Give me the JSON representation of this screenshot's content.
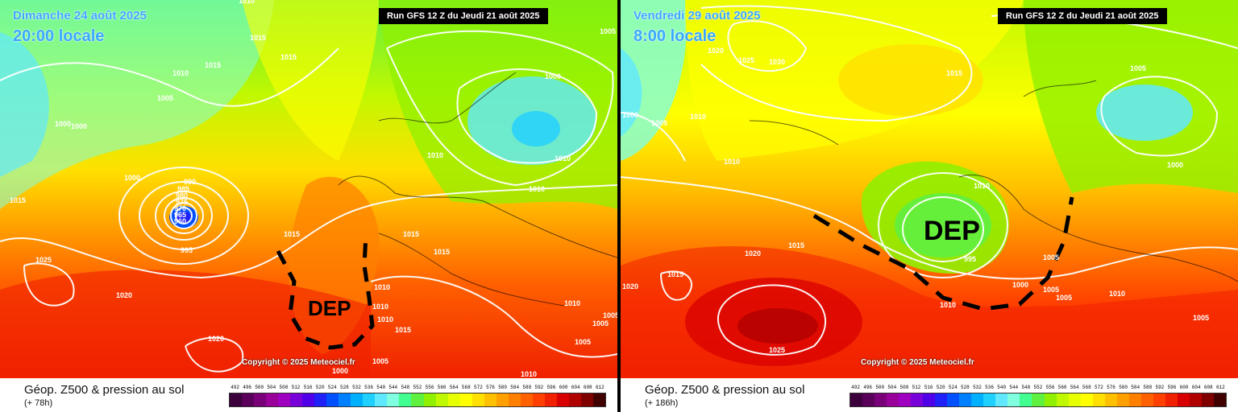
{
  "panels": [
    {
      "date": "Dimanche 24 août 2025",
      "time": "20:00 locale",
      "run": "Run GFS 12 Z du Jeudi 21 août 2025",
      "copyright": "Copyright © 2025 Meteociel.fr",
      "dep_label": "DEP",
      "legend_title": "Géop. Z500 & pression au sol",
      "legend_sub": "(+ 78h)",
      "pressure_labels": [
        "1010",
        "1015",
        "1015",
        "1015",
        "1010",
        "1005",
        "1000",
        "1000",
        "1000",
        "1015",
        "990",
        "985",
        "980",
        "975",
        "970",
        "965",
        "960",
        "995",
        "1015",
        "1025",
        "1020",
        "1020",
        "1010",
        "1010",
        "1010",
        "1015",
        "1015",
        "1015",
        "1010",
        "1005",
        "1000",
        "1010",
        "1005",
        "1005",
        "1000",
        "1010",
        "1005",
        "1010",
        "1005",
        "1010"
      ]
    },
    {
      "date": "Vendredi 29 août 2025",
      "time": "8:00 locale",
      "run": "Run GFS 12 Z du Jeudi 21 août 2025",
      "copyright": "Copyright © 2025 Meteociel.fr",
      "dep_label": "DEP",
      "legend_title": "Géop. Z500 & pression au sol",
      "legend_sub": "(+ 186h)",
      "pressure_labels": [
        "1020",
        "1025",
        "1030",
        "1015",
        "1010",
        "1000",
        "1005",
        "1010",
        "1005",
        "1010",
        "1000",
        "995",
        "1015",
        "1020",
        "1015",
        "1020",
        "1025",
        "1010",
        "1000",
        "1005",
        "1005",
        "1005",
        "1010",
        "1005"
      ]
    }
  ],
  "scale": {
    "labels": [
      "492",
      "496",
      "500",
      "504",
      "508",
      "512",
      "516",
      "520",
      "524",
      "528",
      "532",
      "536",
      "540",
      "544",
      "548",
      "552",
      "556",
      "560",
      "564",
      "568",
      "572",
      "576",
      "580",
      "584",
      "588",
      "592",
      "596",
      "600",
      "604",
      "608",
      "612"
    ],
    "colors": [
      "#3c003c",
      "#5a005a",
      "#7a007a",
      "#9a009a",
      "#a000c0",
      "#7800d8",
      "#5000e8",
      "#2020f8",
      "#0050ff",
      "#0080ff",
      "#00b0ff",
      "#20d0ff",
      "#60e8ff",
      "#80ffe0",
      "#40ff90",
      "#60f040",
      "#90f000",
      "#c0f800",
      "#e8ff00",
      "#ffff00",
      "#ffe000",
      "#ffc000",
      "#ffa000",
      "#ff8000",
      "#ff6000",
      "#ff4000",
      "#f02000",
      "#d80000",
      "#b00000",
      "#800000",
      "#400000"
    ]
  }
}
